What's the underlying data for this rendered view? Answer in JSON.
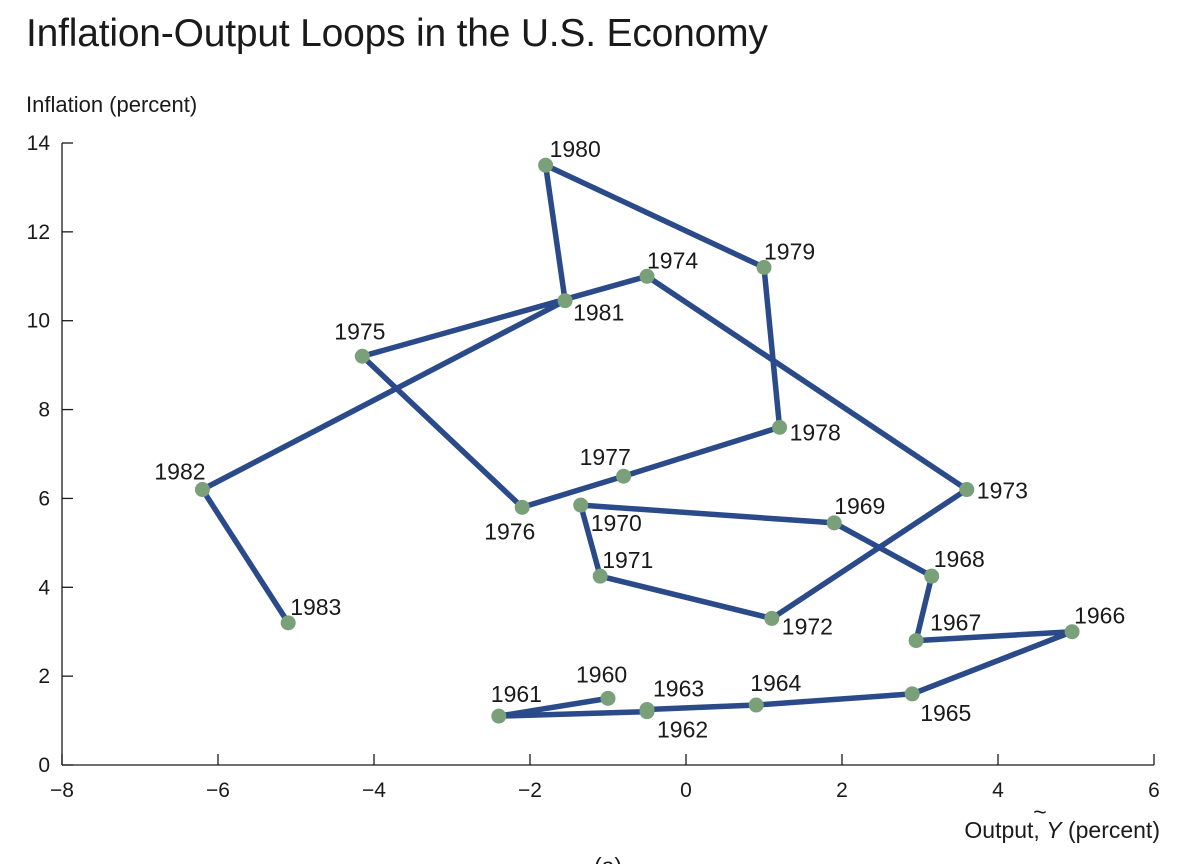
{
  "chart_data": {
    "type": "line",
    "title": "Inflation-Output Loops in the U.S. Economy",
    "ylabel": "Inflation (percent)",
    "xlabel_prefix": "Output, ",
    "xlabel_symbol": "Y",
    "xlabel_suffix": " (percent)",
    "caption": "(a)",
    "xlim": [
      -8,
      6
    ],
    "ylim": [
      0,
      14
    ],
    "xticks": [
      -8,
      -6,
      -4,
      -2,
      0,
      2,
      4,
      6
    ],
    "yticks": [
      0,
      2,
      4,
      6,
      8,
      10,
      12,
      14
    ],
    "xtick_labels": [
      "−8",
      "−6",
      "−4",
      "−2",
      "0",
      "2",
      "4",
      "6"
    ],
    "ytick_labels": [
      "0",
      "2",
      "4",
      "6",
      "8",
      "10",
      "12",
      "14"
    ],
    "line_color": "#2b4a8a",
    "marker_color": "#7aa07a",
    "grid": false,
    "points": [
      {
        "year": "1960",
        "x": -1.0,
        "y": 1.5
      },
      {
        "year": "1961",
        "x": -2.4,
        "y": 1.1
      },
      {
        "year": "1962",
        "x": -0.5,
        "y": 1.2
      },
      {
        "year": "1963",
        "x": -0.5,
        "y": 1.25
      },
      {
        "year": "1964",
        "x": 0.9,
        "y": 1.35
      },
      {
        "year": "1965",
        "x": 2.9,
        "y": 1.6
      },
      {
        "year": "1966",
        "x": 4.95,
        "y": 3.0
      },
      {
        "year": "1967",
        "x": 2.95,
        "y": 2.8
      },
      {
        "year": "1968",
        "x": 3.15,
        "y": 4.25
      },
      {
        "year": "1969",
        "x": 1.9,
        "y": 5.45
      },
      {
        "year": "1970",
        "x": -1.35,
        "y": 5.85
      },
      {
        "year": "1971",
        "x": -1.1,
        "y": 4.25
      },
      {
        "year": "1972",
        "x": 1.1,
        "y": 3.3
      },
      {
        "year": "1973",
        "x": 3.6,
        "y": 6.2
      },
      {
        "year": "1974",
        "x": -0.5,
        "y": 11.0
      },
      {
        "year": "1975",
        "x": -4.15,
        "y": 9.2
      },
      {
        "year": "1976",
        "x": -2.1,
        "y": 5.8
      },
      {
        "year": "1977",
        "x": -0.8,
        "y": 6.5
      },
      {
        "year": "1978",
        "x": 1.2,
        "y": 7.6
      },
      {
        "year": "1979",
        "x": 1.0,
        "y": 11.2
      },
      {
        "year": "1980",
        "x": -1.8,
        "y": 13.5
      },
      {
        "year": "1981",
        "x": -1.55,
        "y": 10.45
      },
      {
        "year": "1982",
        "x": -6.2,
        "y": 6.2
      },
      {
        "year": "1983",
        "x": -5.1,
        "y": 3.2
      }
    ]
  }
}
